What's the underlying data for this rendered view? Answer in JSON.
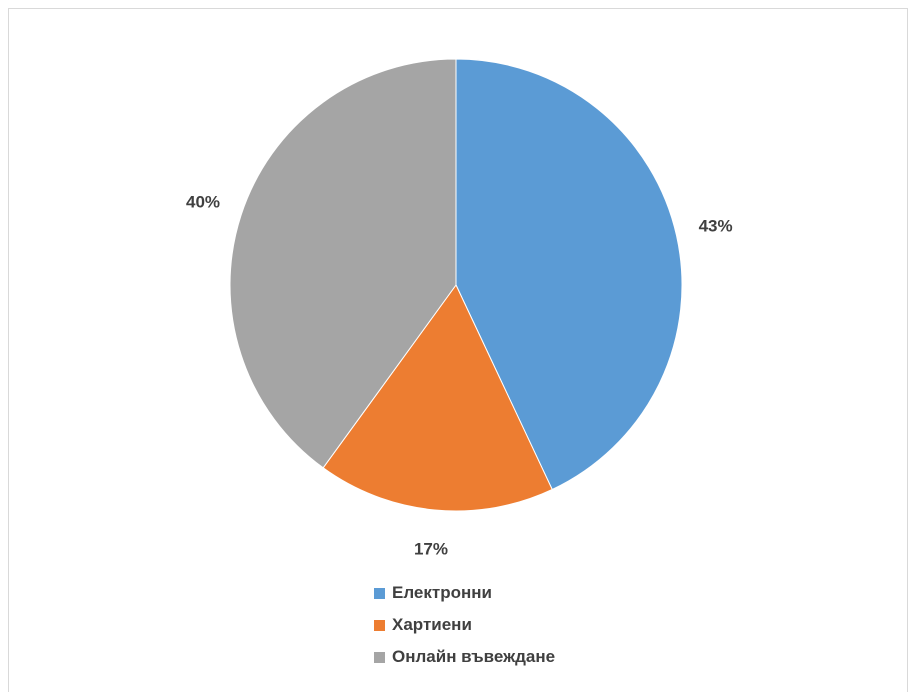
{
  "chart_data": {
    "type": "pie",
    "title": "",
    "legend_position": "bottom",
    "slices": [
      {
        "label": "Електронни",
        "value": 43,
        "display": "43%",
        "color": "#5b9bd5"
      },
      {
        "label": "Хартиени",
        "value": 17,
        "display": "17%",
        "color": "#ed7d31"
      },
      {
        "label": "Онлайн въвеждане",
        "value": 40,
        "display": "40%",
        "color": "#a5a5a5"
      }
    ]
  }
}
